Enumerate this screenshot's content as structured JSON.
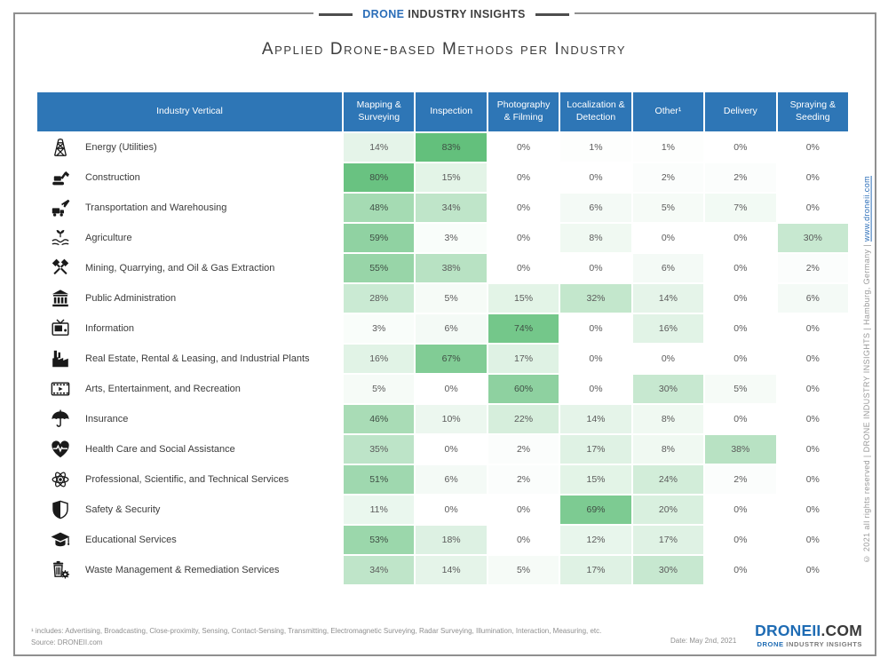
{
  "brand_top": {
    "blue": "DRONE",
    "rest": " INDUSTRY INSIGHTS"
  },
  "title": "Applied Drone-based Methods per Industry",
  "table": {
    "col0_header": "Industry Vertical",
    "method_headers": [
      "Mapping & Surveying",
      "Inspection",
      "Photography & Filming",
      "Localization & Detection",
      "Other¹",
      "Delivery",
      "Spraying & Seeding"
    ],
    "rows": [
      {
        "icon": "power-tower-icon",
        "label": "Energy (Utilities)"
      },
      {
        "icon": "excavator-icon",
        "label": "Construction"
      },
      {
        "icon": "truck-plane-icon",
        "label": "Transportation and Warehousing"
      },
      {
        "icon": "hands-plant-icon",
        "label": "Agriculture"
      },
      {
        "icon": "crossed-hammers-icon",
        "label": "Mining, Quarrying, and Oil & Gas Extraction"
      },
      {
        "icon": "government-building-icon",
        "label": "Public Administration"
      },
      {
        "icon": "tv-icon",
        "label": "Information"
      },
      {
        "icon": "factory-icon",
        "label": "Real Estate, Rental & Leasing, and Industrial Plants"
      },
      {
        "icon": "film-strip-icon",
        "label": "Arts, Entertainment, and Recreation"
      },
      {
        "icon": "umbrella-icon",
        "label": "Insurance"
      },
      {
        "icon": "heart-pulse-icon",
        "label": "Health Care and Social Assistance"
      },
      {
        "icon": "atom-icon",
        "label": "Professional, Scientific, and Technical Services"
      },
      {
        "icon": "shield-icon",
        "label": "Safety & Security"
      },
      {
        "icon": "graduation-cap-icon",
        "label": "Educational Services"
      },
      {
        "icon": "trash-gear-icon",
        "label": "Waste Management & Remediation Services"
      }
    ]
  },
  "chart_data": {
    "type": "heatmap",
    "title": "Applied Drone-based Methods per Industry",
    "columns": [
      "Mapping & Surveying",
      "Inspection",
      "Photography & Filming",
      "Localization & Detection",
      "Other",
      "Delivery",
      "Spraying & Seeding"
    ],
    "rows": [
      "Energy (Utilities)",
      "Construction",
      "Transportation and Warehousing",
      "Agriculture",
      "Mining, Quarrying, and Oil & Gas Extraction",
      "Public Administration",
      "Information",
      "Real Estate, Rental & Leasing, and Industrial Plants",
      "Arts, Entertainment, and Recreation",
      "Insurance",
      "Health Care and Social Assistance",
      "Professional, Scientific, and Technical Services",
      "Safety & Security",
      "Educational Services",
      "Waste Management & Remediation Services"
    ],
    "values_percent": [
      [
        14,
        83,
        0,
        1,
        1,
        0,
        0
      ],
      [
        80,
        15,
        0,
        0,
        2,
        2,
        0
      ],
      [
        48,
        34,
        0,
        6,
        5,
        7,
        0
      ],
      [
        59,
        3,
        0,
        8,
        0,
        0,
        30
      ],
      [
        55,
        38,
        0,
        0,
        6,
        0,
        2
      ],
      [
        28,
        5,
        15,
        32,
        14,
        0,
        6
      ],
      [
        3,
        6,
        74,
        0,
        16,
        0,
        0
      ],
      [
        16,
        67,
        17,
        0,
        0,
        0,
        0
      ],
      [
        5,
        0,
        60,
        0,
        30,
        5,
        0
      ],
      [
        46,
        10,
        22,
        14,
        8,
        0,
        0
      ],
      [
        35,
        0,
        2,
        17,
        8,
        38,
        0
      ],
      [
        51,
        6,
        2,
        15,
        24,
        2,
        0
      ],
      [
        11,
        0,
        0,
        69,
        20,
        0,
        0
      ],
      [
        53,
        18,
        0,
        12,
        17,
        0,
        0
      ],
      [
        34,
        14,
        5,
        17,
        30,
        0,
        0
      ]
    ],
    "unit": "%",
    "color_scale": {
      "min_color": "#ffffff",
      "max_color": "#63c07c",
      "domain": [
        0,
        83
      ]
    },
    "legend_position": "none",
    "grid": false
  },
  "side_text": {
    "copyright": "© 2021 all rights reserved | DRONE INDUSTRY INSIGHTS | Hamburg, Germany | ",
    "link": "www.droneii.com"
  },
  "footer": {
    "footnote": "¹ includes: Advertising, Broadcasting, Close-proximity, Sensing, Contact-Sensing, Transmitting, Electromagnetic Surveying, Radar Surveying, Illumination, Interaction, Measuring, etc.",
    "source": "Source: DRONEII.com",
    "date": "Date: May 2nd, 2021",
    "logo_main_blue": "DRONEII",
    "logo_main_dark": ".COM",
    "logo_sub_blue": "DRONE ",
    "logo_sub_gray": "INDUSTRY INSIGHTS"
  },
  "colors": {
    "header_blue": "#2e76b6",
    "heat_green": "#63c07c",
    "link_blue": "#2a6db8",
    "frame_gray": "#8f8f8f"
  }
}
